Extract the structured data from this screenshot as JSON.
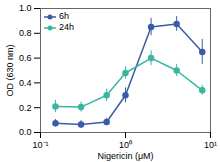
{
  "chart_data": {
    "type": "line",
    "xlabel": "Nigericin (μM)",
    "ylabel": "OD (630 nm)",
    "log": "x",
    "xlim": [
      0.1,
      10
    ],
    "xticks": [
      {
        "value": 0.1,
        "label": "10⁻¹"
      },
      {
        "value": 1,
        "label": "10⁰"
      },
      {
        "value": 10,
        "label": "10¹"
      }
    ],
    "ylim": [
      0.0,
      1.0
    ],
    "yticks": [
      {
        "value": 0.0,
        "label": "0.0"
      },
      0.2,
      0.4,
      0.6,
      0.8,
      {
        "value": 1.0,
        "label": "1.0"
      }
    ],
    "grid": false,
    "legend": "upper left",
    "x": [
      0.15,
      0.3,
      0.6,
      1.0,
      2.0,
      4.0,
      8.0
    ],
    "series": [
      {
        "name": "6h",
        "color": "#3a5ca8",
        "marker": "circle",
        "values": [
          0.075,
          0.065,
          0.085,
          0.3,
          0.85,
          0.875,
          0.65
        ],
        "error": [
          0.03,
          0.03,
          0.03,
          0.06,
          0.07,
          0.06,
          0.1
        ]
      },
      {
        "name": "24h",
        "color": "#3ab5a0",
        "marker": "circle",
        "values": [
          0.21,
          0.205,
          0.3,
          0.48,
          0.6,
          0.5,
          0.34
        ],
        "error": [
          0.05,
          0.04,
          0.05,
          0.05,
          0.06,
          0.05,
          0.04
        ]
      }
    ]
  }
}
